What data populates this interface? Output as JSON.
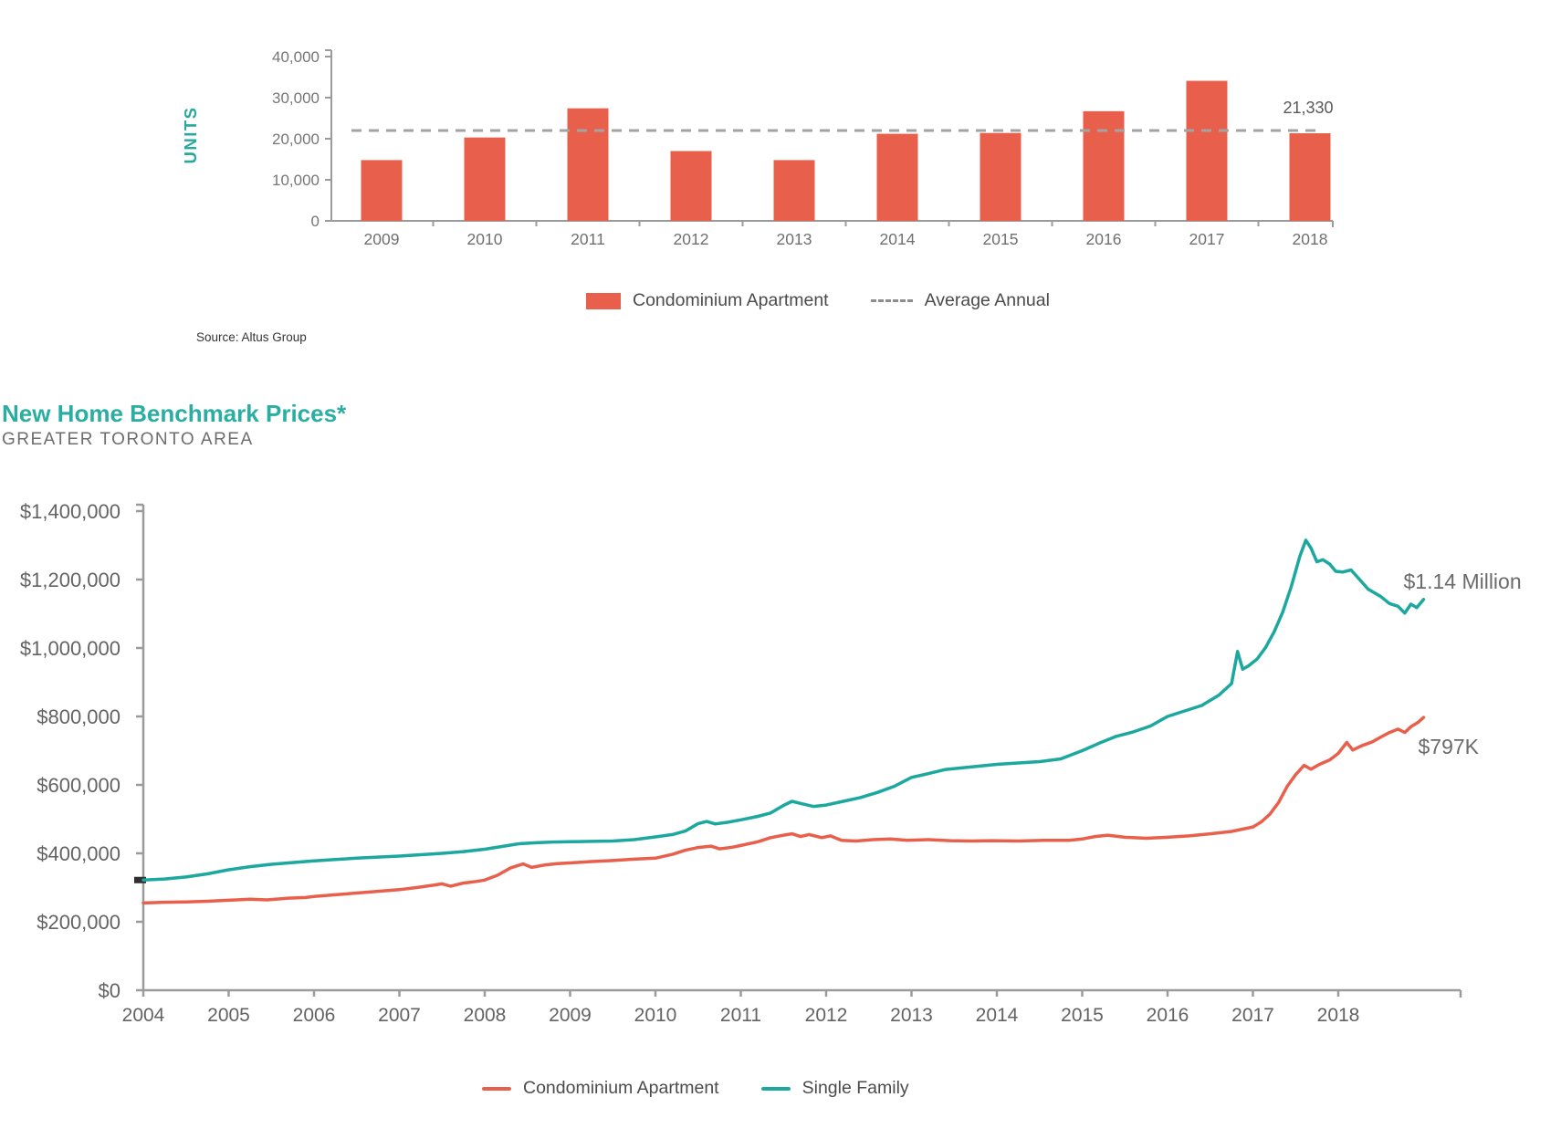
{
  "chart_data": [
    {
      "type": "bar",
      "name": "condominium-apartment-completions",
      "ylabel": "UNITS",
      "categories": [
        "2009",
        "2010",
        "2011",
        "2012",
        "2013",
        "2014",
        "2015",
        "2016",
        "2017",
        "2018"
      ],
      "values": [
        14800,
        20300,
        27400,
        17000,
        14800,
        21200,
        21400,
        26700,
        34100,
        21330
      ],
      "series_label": "Condominium Apartment",
      "average_line": {
        "label": "Average Annual",
        "value": 22000
      },
      "annotation": {
        "text": "21,330",
        "category": "2018"
      },
      "y_ticks": [
        0,
        10000,
        20000,
        30000,
        40000
      ],
      "ylim": [
        0,
        40000
      ],
      "grid": false,
      "legend_position": "bottom-center",
      "source": "Source: Altus Group",
      "bar_color": "#E8604C",
      "average_color": "#A3A3A3"
    },
    {
      "type": "line",
      "name": "new-home-benchmark-prices",
      "title": "New Home Benchmark Prices*",
      "subtitle": "GREATER TORONTO AREA",
      "x_ticks": [
        2004,
        2005,
        2006,
        2007,
        2008,
        2009,
        2010,
        2011,
        2012,
        2013,
        2014,
        2015,
        2016,
        2017,
        2018
      ],
      "y_ticks": [
        0,
        200000,
        400000,
        600000,
        800000,
        1000000,
        1200000,
        1400000
      ],
      "ylim": [
        0,
        1400000
      ],
      "xlim": [
        2004,
        2019
      ],
      "grid": false,
      "legend_position": "bottom-center",
      "values_unit": "CAD thousands",
      "series": [
        {
          "name": "Condominium Apartment",
          "color": "#E8604C",
          "end_label": "$797K",
          "points": [
            [
              2004.0,
              255
            ],
            [
              2004.25,
              257
            ],
            [
              2004.5,
              258
            ],
            [
              2004.75,
              260
            ],
            [
              2005.0,
              263
            ],
            [
              2005.25,
              266
            ],
            [
              2005.45,
              264
            ],
            [
              2005.7,
              269
            ],
            [
              2005.9,
              271
            ],
            [
              2006.0,
              274
            ],
            [
              2006.25,
              279
            ],
            [
              2006.5,
              284
            ],
            [
              2006.75,
              289
            ],
            [
              2007.0,
              294
            ],
            [
              2007.2,
              300
            ],
            [
              2007.4,
              307
            ],
            [
              2007.5,
              311
            ],
            [
              2007.6,
              304
            ],
            [
              2007.75,
              313
            ],
            [
              2007.9,
              318
            ],
            [
              2008.0,
              322
            ],
            [
              2008.15,
              336
            ],
            [
              2008.3,
              357
            ],
            [
              2008.45,
              369
            ],
            [
              2008.55,
              359
            ],
            [
              2008.7,
              366
            ],
            [
              2008.85,
              370
            ],
            [
              2009.0,
              372
            ],
            [
              2009.25,
              376
            ],
            [
              2009.5,
              379
            ],
            [
              2009.75,
              383
            ],
            [
              2010.0,
              386
            ],
            [
              2010.2,
              397
            ],
            [
              2010.35,
              409
            ],
            [
              2010.5,
              417
            ],
            [
              2010.65,
              421
            ],
            [
              2010.75,
              413
            ],
            [
              2010.9,
              418
            ],
            [
              2011.0,
              423
            ],
            [
              2011.2,
              434
            ],
            [
              2011.35,
              446
            ],
            [
              2011.5,
              453
            ],
            [
              2011.6,
              457
            ],
            [
              2011.7,
              449
            ],
            [
              2011.8,
              455
            ],
            [
              2011.95,
              446
            ],
            [
              2012.05,
              451
            ],
            [
              2012.18,
              438
            ],
            [
              2012.35,
              436
            ],
            [
              2012.55,
              440
            ],
            [
              2012.75,
              442
            ],
            [
              2012.95,
              438
            ],
            [
              2013.2,
              440
            ],
            [
              2013.45,
              437
            ],
            [
              2013.7,
              436
            ],
            [
              2013.95,
              437
            ],
            [
              2014.25,
              436
            ],
            [
              2014.55,
              438
            ],
            [
              2014.85,
              438
            ],
            [
              2015.0,
              442
            ],
            [
              2015.15,
              449
            ],
            [
              2015.3,
              453
            ],
            [
              2015.5,
              447
            ],
            [
              2015.75,
              444
            ],
            [
              2016.0,
              447
            ],
            [
              2016.25,
              451
            ],
            [
              2016.5,
              457
            ],
            [
              2016.75,
              464
            ],
            [
              2017.0,
              477
            ],
            [
              2017.1,
              492
            ],
            [
              2017.2,
              515
            ],
            [
              2017.3,
              548
            ],
            [
              2017.4,
              595
            ],
            [
              2017.5,
              630
            ],
            [
              2017.6,
              657
            ],
            [
              2017.68,
              646
            ],
            [
              2017.78,
              660
            ],
            [
              2017.9,
              673
            ],
            [
              2018.0,
              692
            ],
            [
              2018.1,
              724
            ],
            [
              2018.17,
              702
            ],
            [
              2018.27,
              714
            ],
            [
              2018.4,
              726
            ],
            [
              2018.5,
              740
            ],
            [
              2018.6,
              753
            ],
            [
              2018.7,
              763
            ],
            [
              2018.78,
              753
            ],
            [
              2018.85,
              770
            ],
            [
              2018.93,
              782
            ],
            [
              2019.0,
              797
            ]
          ]
        },
        {
          "name": "Single Family",
          "color": "#1CA89E",
          "end_label": "$1.14 Million",
          "start_marker": true,
          "points": [
            [
              2004.0,
              322
            ],
            [
              2004.25,
              325
            ],
            [
              2004.5,
              331
            ],
            [
              2004.75,
              340
            ],
            [
              2005.0,
              352
            ],
            [
              2005.25,
              361
            ],
            [
              2005.5,
              368
            ],
            [
              2005.75,
              373
            ],
            [
              2006.0,
              378
            ],
            [
              2006.25,
              382
            ],
            [
              2006.5,
              386
            ],
            [
              2006.75,
              389
            ],
            [
              2007.0,
              392
            ],
            [
              2007.25,
              396
            ],
            [
              2007.5,
              400
            ],
            [
              2007.75,
              405
            ],
            [
              2008.0,
              412
            ],
            [
              2008.2,
              420
            ],
            [
              2008.4,
              428
            ],
            [
              2008.6,
              431
            ],
            [
              2008.8,
              433
            ],
            [
              2009.0,
              434
            ],
            [
              2009.25,
              435
            ],
            [
              2009.5,
              436
            ],
            [
              2009.75,
              440
            ],
            [
              2010.0,
              448
            ],
            [
              2010.2,
              455
            ],
            [
              2010.35,
              465
            ],
            [
              2010.5,
              487
            ],
            [
              2010.6,
              493
            ],
            [
              2010.7,
              486
            ],
            [
              2010.85,
              491
            ],
            [
              2011.0,
              498
            ],
            [
              2011.2,
              508
            ],
            [
              2011.35,
              518
            ],
            [
              2011.5,
              540
            ],
            [
              2011.6,
              552
            ],
            [
              2011.7,
              546
            ],
            [
              2011.85,
              537
            ],
            [
              2012.0,
              541
            ],
            [
              2012.2,
              552
            ],
            [
              2012.4,
              563
            ],
            [
              2012.6,
              578
            ],
            [
              2012.8,
              596
            ],
            [
              2013.0,
              622
            ],
            [
              2013.2,
              633
            ],
            [
              2013.4,
              645
            ],
            [
              2013.6,
              650
            ],
            [
              2013.8,
              655
            ],
            [
              2014.0,
              660
            ],
            [
              2014.25,
              664
            ],
            [
              2014.5,
              668
            ],
            [
              2014.75,
              676
            ],
            [
              2015.0,
              700
            ],
            [
              2015.2,
              722
            ],
            [
              2015.4,
              742
            ],
            [
              2015.6,
              755
            ],
            [
              2015.8,
              772
            ],
            [
              2016.0,
              800
            ],
            [
              2016.2,
              816
            ],
            [
              2016.4,
              832
            ],
            [
              2016.6,
              862
            ],
            [
              2016.75,
              896
            ],
            [
              2016.82,
              990
            ],
            [
              2016.88,
              938
            ],
            [
              2016.95,
              948
            ],
            [
              2017.05,
              968
            ],
            [
              2017.15,
              1002
            ],
            [
              2017.25,
              1048
            ],
            [
              2017.35,
              1105
            ],
            [
              2017.45,
              1180
            ],
            [
              2017.55,
              1268
            ],
            [
              2017.62,
              1315
            ],
            [
              2017.68,
              1292
            ],
            [
              2017.75,
              1252
            ],
            [
              2017.82,
              1258
            ],
            [
              2017.9,
              1245
            ],
            [
              2017.97,
              1224
            ],
            [
              2018.05,
              1222
            ],
            [
              2018.15,
              1228
            ],
            [
              2018.25,
              1200
            ],
            [
              2018.35,
              1172
            ],
            [
              2018.5,
              1150
            ],
            [
              2018.6,
              1130
            ],
            [
              2018.7,
              1122
            ],
            [
              2018.78,
              1102
            ],
            [
              2018.85,
              1128
            ],
            [
              2018.92,
              1118
            ],
            [
              2019.0,
              1142
            ]
          ]
        }
      ]
    }
  ]
}
